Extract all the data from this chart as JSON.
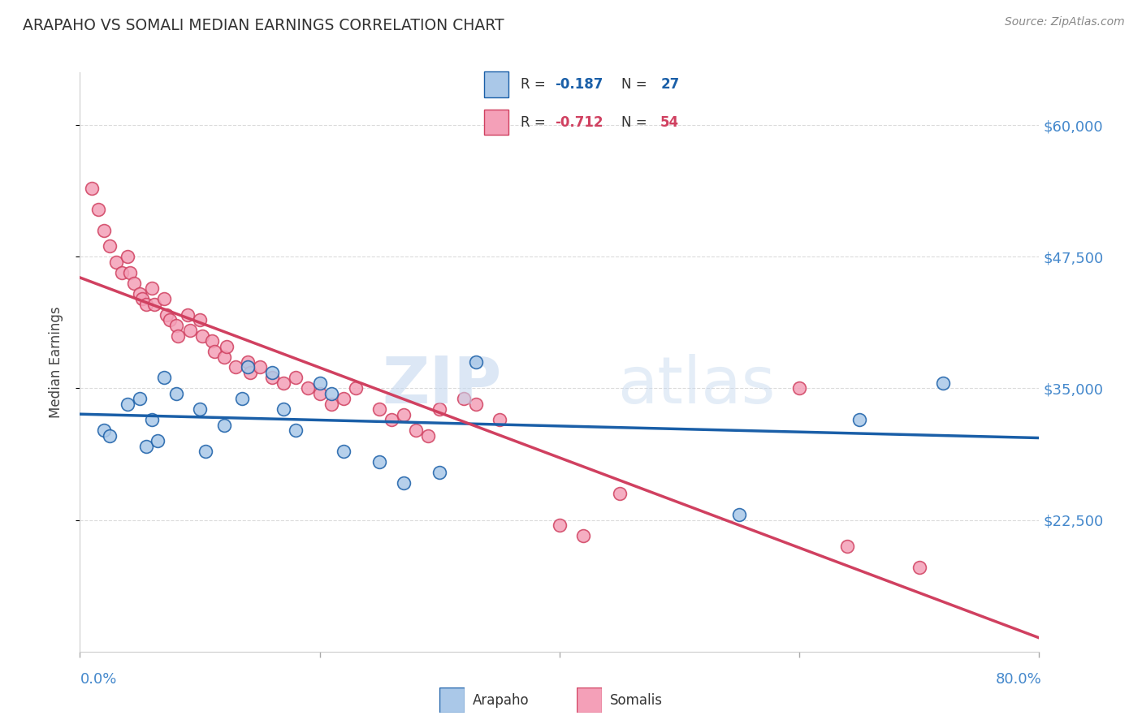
{
  "title": "ARAPAHO VS SOMALI MEDIAN EARNINGS CORRELATION CHART",
  "source": "Source: ZipAtlas.com",
  "ylabel": "Median Earnings",
  "ytick_labels": [
    "$22,500",
    "$35,000",
    "$47,500",
    "$60,000"
  ],
  "ytick_values": [
    22500,
    35000,
    47500,
    60000
  ],
  "ymin": 10000,
  "ymax": 65000,
  "xmin": 0.0,
  "xmax": 0.8,
  "arapaho_color": "#aac8e8",
  "somali_color": "#f4a0b8",
  "arapaho_line_color": "#1a5fa8",
  "somali_line_color": "#d04060",
  "title_color": "#333333",
  "axis_label_color": "#4488cc",
  "watermark_zip": "ZIP",
  "watermark_atlas": "atlas",
  "legend_label_arapaho": "Arapaho",
  "legend_label_somali": "Somalis",
  "R_arapaho": "-0.187",
  "N_arapaho": "27",
  "R_somali": "-0.712",
  "N_somali": "54",
  "arapaho_x": [
    0.02,
    0.025,
    0.04,
    0.05,
    0.055,
    0.06,
    0.065,
    0.07,
    0.08,
    0.1,
    0.105,
    0.12,
    0.135,
    0.14,
    0.16,
    0.17,
    0.18,
    0.2,
    0.21,
    0.22,
    0.25,
    0.27,
    0.3,
    0.33,
    0.55,
    0.65,
    0.72
  ],
  "arapaho_y": [
    31000,
    30500,
    33500,
    34000,
    29500,
    32000,
    30000,
    36000,
    34500,
    33000,
    29000,
    31500,
    34000,
    37000,
    36500,
    33000,
    31000,
    35500,
    34500,
    29000,
    28000,
    26000,
    27000,
    37500,
    23000,
    32000,
    35500
  ],
  "somali_x": [
    0.01,
    0.015,
    0.02,
    0.025,
    0.03,
    0.035,
    0.04,
    0.042,
    0.045,
    0.05,
    0.052,
    0.055,
    0.06,
    0.062,
    0.07,
    0.072,
    0.075,
    0.08,
    0.082,
    0.09,
    0.092,
    0.1,
    0.102,
    0.11,
    0.112,
    0.12,
    0.122,
    0.13,
    0.14,
    0.142,
    0.15,
    0.16,
    0.17,
    0.18,
    0.19,
    0.2,
    0.21,
    0.22,
    0.23,
    0.25,
    0.26,
    0.27,
    0.28,
    0.29,
    0.3,
    0.32,
    0.33,
    0.35,
    0.4,
    0.42,
    0.45,
    0.6,
    0.64,
    0.7
  ],
  "somali_y": [
    54000,
    52000,
    50000,
    48500,
    47000,
    46000,
    47500,
    46000,
    45000,
    44000,
    43500,
    43000,
    44500,
    43000,
    43500,
    42000,
    41500,
    41000,
    40000,
    42000,
    40500,
    41500,
    40000,
    39500,
    38500,
    38000,
    39000,
    37000,
    37500,
    36500,
    37000,
    36000,
    35500,
    36000,
    35000,
    34500,
    33500,
    34000,
    35000,
    33000,
    32000,
    32500,
    31000,
    30500,
    33000,
    34000,
    33500,
    32000,
    22000,
    21000,
    25000,
    35000,
    20000,
    18000
  ]
}
